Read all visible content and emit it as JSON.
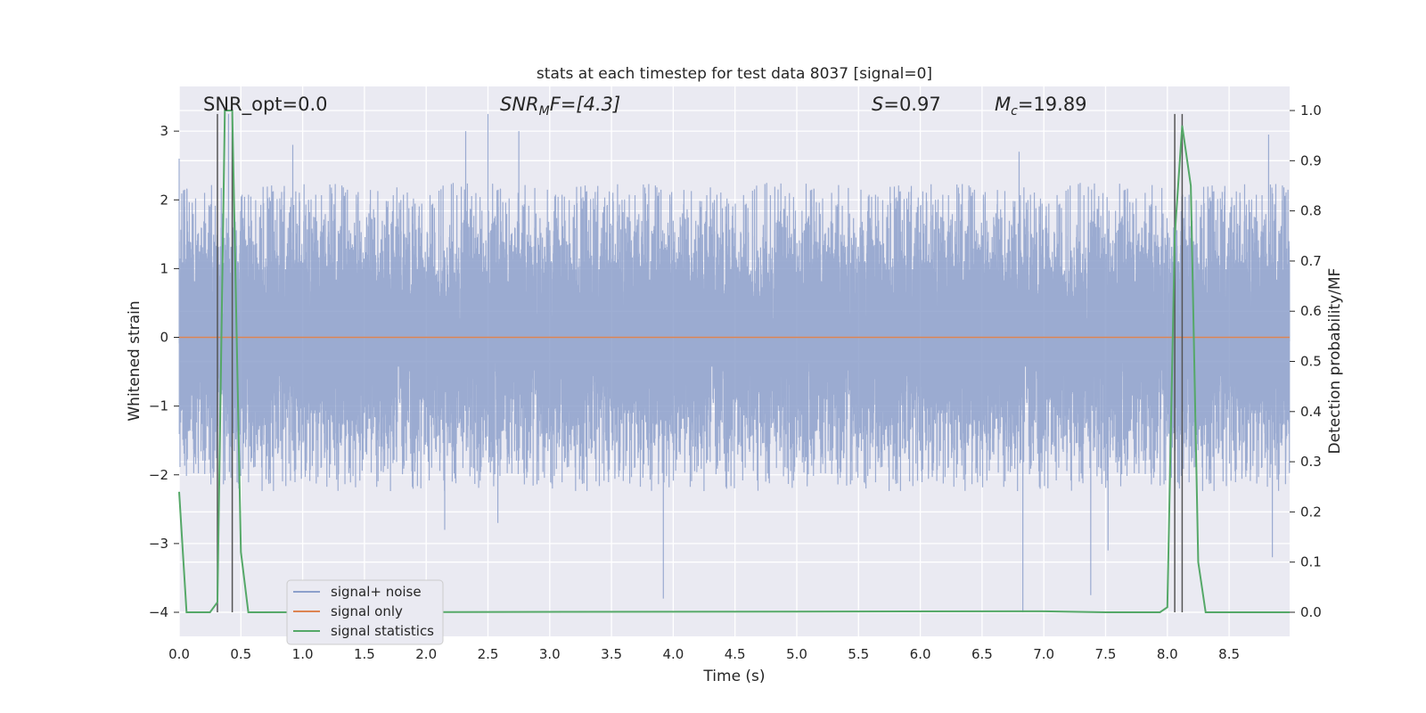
{
  "chart_data": {
    "type": "line",
    "title": "stats at each timestep for test data 8037 [signal=0]",
    "xlabel": "Time (s)",
    "ylabel": "Whitened strain",
    "ylabel_right": "Detection probability/MF",
    "xlim": [
      0.0,
      8.99
    ],
    "ylim": [
      -4.35,
      3.65
    ],
    "ylim_right": [
      -0.048,
      1.048
    ],
    "x_ticks": [
      0.0,
      0.5,
      1.0,
      1.5,
      2.0,
      2.5,
      3.0,
      3.5,
      4.0,
      4.5,
      5.0,
      5.5,
      6.0,
      6.5,
      7.0,
      7.5,
      8.0,
      8.5
    ],
    "x_tick_labels": [
      "0.0",
      "0.5",
      "1.0",
      "1.5",
      "2.0",
      "2.5",
      "3.0",
      "3.5",
      "4.0",
      "4.5",
      "5.0",
      "5.5",
      "6.0",
      "6.5",
      "7.0",
      "7.5",
      "8.0",
      "8.5"
    ],
    "y_ticks": [
      3,
      2,
      1,
      0,
      -1,
      -2,
      -3,
      -4
    ],
    "y_tick_labels": [
      "3",
      "2",
      "1",
      "0",
      "−1",
      "−2",
      "−3",
      "−4"
    ],
    "y_right_ticks": [
      1.0,
      0.9,
      0.8,
      0.7,
      0.6,
      0.5,
      0.4,
      0.3,
      0.2,
      0.1,
      0.0
    ],
    "y_right_tick_labels": [
      "1.0",
      "0.9",
      "0.8",
      "0.7",
      "0.6",
      "0.5",
      "0.4",
      "0.3",
      "0.2",
      "0.1",
      "0.0"
    ],
    "grid": true,
    "legend_position": "lower-left",
    "annotations": {
      "snr_opt": "SNR_opt=0.0",
      "snr_mf_sym": "SNR",
      "snr_mf_sub": "M",
      "snr_mf_tail": "F=[4.3]",
      "s_sym": "S",
      "s_val": "=0.97",
      "mc_sym": "M",
      "mc_sub": "c",
      "mc_val": "=19.89"
    },
    "vertical_markers_x": [
      0.31,
      0.43,
      8.06,
      8.12
    ],
    "vertical_marker_range_y": [
      -4.0,
      3.25
    ],
    "series": [
      {
        "name": "signal+ noise",
        "color": "#8da0cb",
        "kind": "noise",
        "sample_rate": 2048,
        "std": 0.9,
        "envelope_max": 2.25,
        "peaks": [
          {
            "x": 0.0,
            "y": 2.6
          },
          {
            "x": 0.4,
            "y": 3.25
          },
          {
            "x": 0.92,
            "y": 2.8
          },
          {
            "x": 2.15,
            "y": -2.8
          },
          {
            "x": 2.32,
            "y": 3.0
          },
          {
            "x": 2.5,
            "y": 3.25
          },
          {
            "x": 2.58,
            "y": -2.7
          },
          {
            "x": 2.75,
            "y": 3.0
          },
          {
            "x": 3.92,
            "y": -3.8
          },
          {
            "x": 6.8,
            "y": 2.7
          },
          {
            "x": 6.83,
            "y": -4.0
          },
          {
            "x": 7.38,
            "y": -3.75
          },
          {
            "x": 7.52,
            "y": -3.1
          },
          {
            "x": 8.82,
            "y": 2.95
          },
          {
            "x": 8.85,
            "y": -3.2
          }
        ]
      },
      {
        "name": "signal only",
        "color": "#dd8452",
        "x": [
          0.0,
          8.99
        ],
        "y": [
          0.0,
          0.0
        ]
      },
      {
        "name": "signal statistics",
        "color": "#55a868",
        "axis": "right",
        "x": [
          0.0,
          0.06,
          0.12,
          0.18,
          0.25,
          0.31,
          0.37,
          0.43,
          0.5,
          0.56,
          0.62,
          7.0,
          7.5,
          7.94,
          8.0,
          8.06,
          8.12,
          8.19,
          8.25,
          8.31,
          8.37,
          8.99
        ],
        "y": [
          0.24,
          0.0,
          0.0,
          0.0,
          0.0,
          0.02,
          1.0,
          1.0,
          0.12,
          0.0,
          0.0,
          0.002,
          0.0,
          0.0,
          0.01,
          0.75,
          0.97,
          0.85,
          0.1,
          0.0,
          0.0,
          0.0
        ]
      }
    ]
  }
}
